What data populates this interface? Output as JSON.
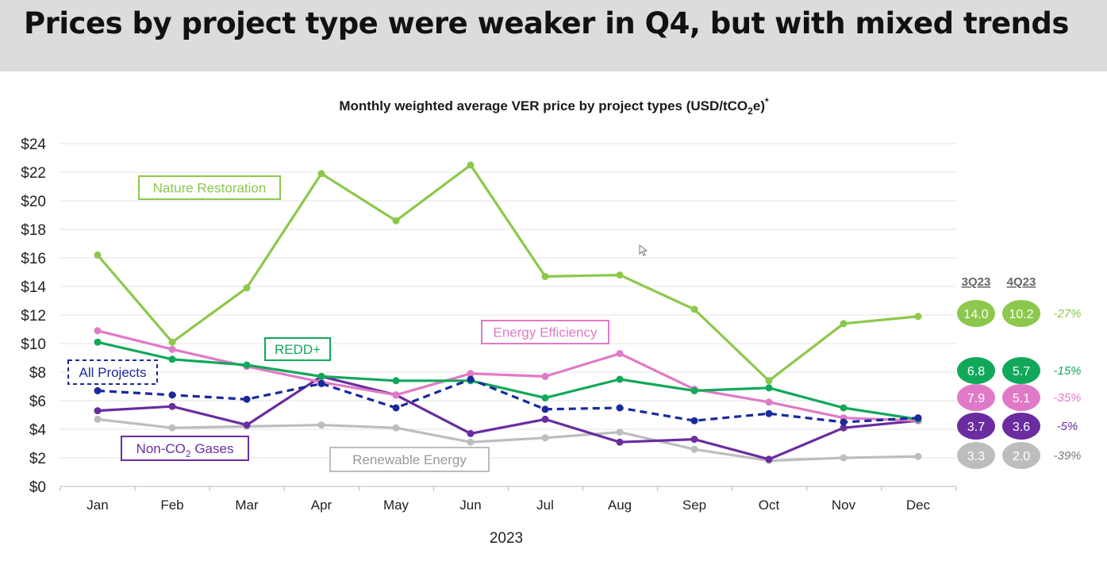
{
  "header": {
    "title": "Prices by project type were weaker in Q4, but with mixed trends"
  },
  "chart_data": {
    "type": "line",
    "title": "Monthly weighted average VER price by project types (USD/tCO",
    "title_sub": "2",
    "title_end": "e)",
    "title_sup": "*",
    "xlabel": "2023",
    "ylabel": "",
    "ylim": [
      0,
      24
    ],
    "y_ticks": [
      "$0",
      "$2",
      "$4",
      "$6",
      "$8",
      "$10",
      "$12",
      "$14",
      "$16",
      "$18",
      "$20",
      "$22",
      "$24"
    ],
    "grid": true,
    "categories": [
      "Jan",
      "Feb",
      "Mar",
      "Apr",
      "May",
      "Jun",
      "Jul",
      "Aug",
      "Sep",
      "Oct",
      "Nov",
      "Dec"
    ],
    "series": [
      {
        "name": "Renewable Energy",
        "label": "Renewable Energy",
        "color": "#bdbdbd",
        "dashed": false,
        "values": [
          4.7,
          4.1,
          4.2,
          4.3,
          4.1,
          3.1,
          3.4,
          3.8,
          2.6,
          1.8,
          2.0,
          2.1
        ]
      },
      {
        "name": "Non-CO2 Gases",
        "label": "Non-CO",
        "label_sub": "2",
        "label_end": " Gases",
        "color": "#6a2c9f",
        "dashed": false,
        "values": [
          5.3,
          5.6,
          4.3,
          7.7,
          6.4,
          3.7,
          4.7,
          3.1,
          3.3,
          1.9,
          4.1,
          4.6
        ]
      },
      {
        "name": "Energy Efficiency",
        "label": "Energy Efficiency",
        "color": "#e07ac7",
        "dashed": false,
        "values": [
          10.9,
          9.6,
          8.4,
          7.3,
          6.4,
          7.9,
          7.7,
          9.3,
          6.8,
          5.9,
          4.8,
          4.6
        ]
      },
      {
        "name": "REDD+",
        "label": "REDD+",
        "color": "#12a85a",
        "dashed": false,
        "values": [
          10.1,
          8.9,
          8.5,
          7.7,
          7.4,
          7.4,
          6.2,
          7.5,
          6.7,
          6.9,
          5.5,
          4.7
        ]
      },
      {
        "name": "All Projects",
        "label": "All Projects",
        "color": "#1a2a9c",
        "dashed": true,
        "values": [
          6.7,
          6.4,
          6.1,
          7.2,
          5.5,
          7.5,
          5.4,
          5.5,
          4.6,
          5.1,
          4.5,
          4.8
        ]
      },
      {
        "name": "Nature Restoration",
        "label": "Nature Restoration",
        "color": "#8cc84b",
        "dashed": false,
        "values": [
          16.2,
          10.1,
          13.9,
          21.9,
          18.6,
          22.5,
          14.7,
          14.8,
          12.4,
          7.4,
          11.4,
          11.9
        ]
      }
    ],
    "quarter_headers": [
      "3Q23",
      "4Q23"
    ],
    "quarter_summary": [
      {
        "name": "Nature Restoration",
        "q3": "14.0",
        "q4": "10.2",
        "change": "-27%",
        "color": "#8cc84b"
      },
      {
        "name": "REDD+",
        "q3": "6.8",
        "q4": "5.7",
        "change": "-15%",
        "color": "#12a85a"
      },
      {
        "name": "Energy Efficiency",
        "q3": "7.9",
        "q4": "5.1",
        "change": "-35%",
        "color": "#e07ac7"
      },
      {
        "name": "Non-CO2 Gases",
        "q3": "3.7",
        "q4": "3.6",
        "change": "-5%",
        "color": "#6a2c9f"
      },
      {
        "name": "Renewable Energy",
        "q3": "3.3",
        "q4": "2.0",
        "change": "-39%",
        "color": "#bdbdbd"
      }
    ]
  }
}
